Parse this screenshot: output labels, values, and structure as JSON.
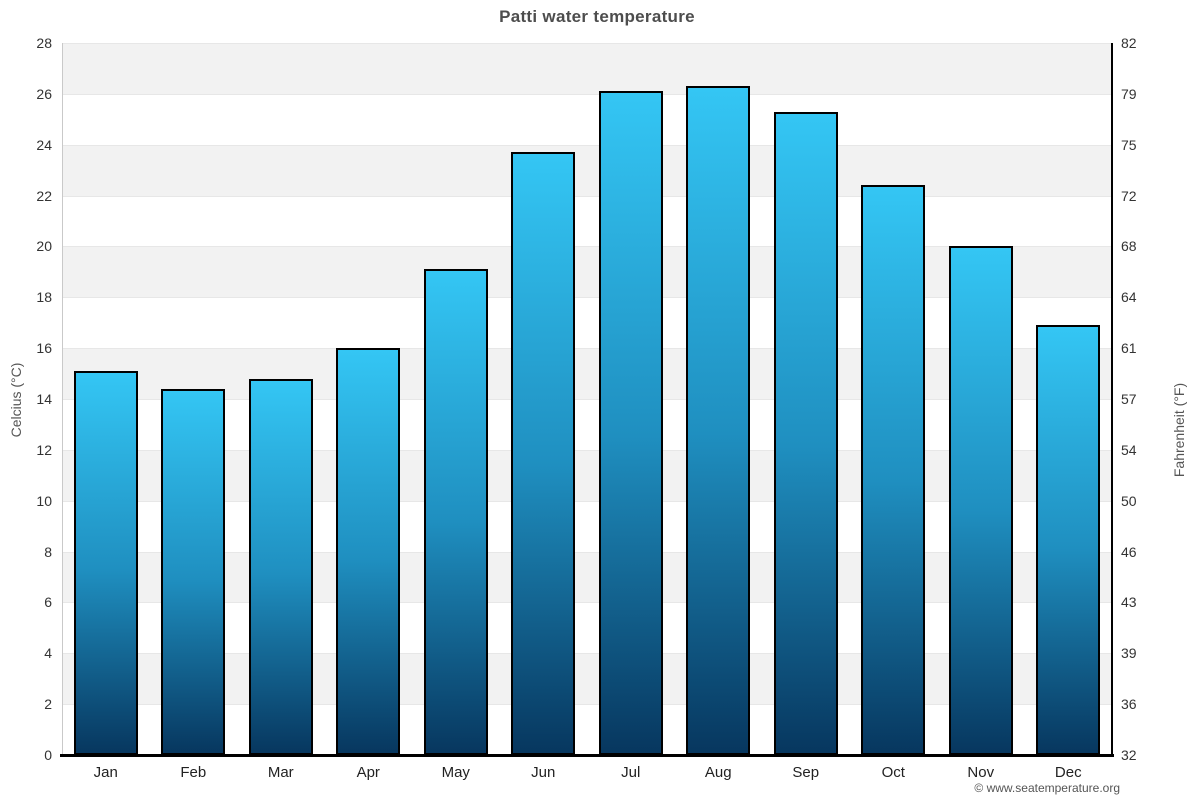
{
  "header": {
    "title": "Patti water temperature"
  },
  "footer": {
    "credit": "© www.seatemperature.org"
  },
  "chart_data": {
    "type": "bar",
    "title": "Patti water temperature",
    "categories": [
      "Jan",
      "Feb",
      "Mar",
      "Apr",
      "May",
      "Jun",
      "Jul",
      "Aug",
      "Sep",
      "Oct",
      "Nov",
      "Dec"
    ],
    "values": [
      15.1,
      14.4,
      14.8,
      16.0,
      19.1,
      23.7,
      26.1,
      26.3,
      25.3,
      22.4,
      20.0,
      16.9
    ],
    "ylabel_left": "Celcius (°C)",
    "ylabel_right": "Fahrenheit (°F)",
    "ylim_celsius": [
      0,
      28
    ],
    "celsius_ticks": [
      0,
      2,
      4,
      6,
      8,
      10,
      12,
      14,
      16,
      18,
      20,
      22,
      24,
      26,
      28
    ],
    "fahrenheit_ticks": [
      32,
      36,
      39,
      43,
      46,
      50,
      54,
      57,
      61,
      64,
      68,
      72,
      75,
      79,
      82
    ],
    "legend": "none",
    "grid": "alternating horizontal bands every 2°C",
    "colors": {
      "bar_gradient_top": "#34c6f4",
      "bar_gradient_mid": "#1f8fc0",
      "bar_gradient_bottom": "#07375f",
      "bar_border": "#000000",
      "band_fill": "#f2f2f2",
      "gridline": "#e7e7e7",
      "axis_line": "#000000",
      "left_spine": "#c9c9c9",
      "title_color": "#4d4d4d"
    }
  }
}
